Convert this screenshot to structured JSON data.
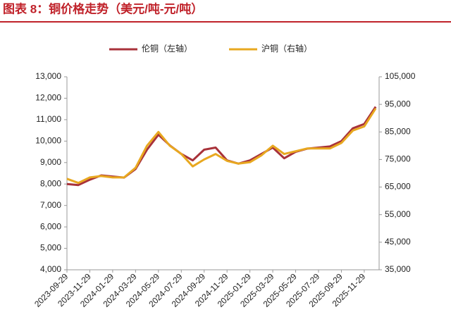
{
  "chart_data": {
    "type": "line",
    "title": "图表 8：铜价格走势（美元/吨-元/吨）",
    "categories": [
      "2023-09-29",
      null,
      "2023-11-29",
      null,
      "2024-01-29",
      null,
      "2024-03-29",
      null,
      "2024-05-29",
      null,
      "2024-07-29",
      null,
      "2024-09-29",
      null,
      "2024-11-29",
      null,
      "2025-01-29",
      null,
      "2025-03-29",
      null,
      "2025-05-29",
      null,
      "2025-07-29",
      null,
      "2025-09-29",
      null,
      "2025-11-29",
      null
    ],
    "series": [
      {
        "name": "伦铜（左轴）",
        "color": "#a8323a",
        "values": [
          8000,
          7950,
          8200,
          8400,
          8350,
          8300,
          8700,
          9600,
          10300,
          9800,
          9400,
          9100,
          9600,
          9700,
          9100,
          8950,
          9100,
          9400,
          9700,
          9200,
          9500,
          9650,
          9700,
          9750,
          10000,
          10600,
          10800,
          11600
        ]
      },
      {
        "name": "沪铜（右轴）",
        "color": "#e8a820",
        "axis": "y2",
        "values": [
          68000,
          66500,
          68500,
          69000,
          68500,
          68500,
          72000,
          80000,
          85000,
          80000,
          77000,
          72500,
          75000,
          77000,
          74500,
          73500,
          74000,
          76500,
          80000,
          77000,
          78000,
          79000,
          79000,
          79000,
          81000,
          85500,
          87000,
          93500
        ]
      }
    ],
    "ylim": [
      4000,
      13000
    ],
    "yticks": [
      {
        "value": 4000,
        "label": "4,000"
      },
      {
        "value": 5000,
        "label": "5,000"
      },
      {
        "value": 6000,
        "label": "6,000"
      },
      {
        "value": 7000,
        "label": "7,000"
      },
      {
        "value": 8000,
        "label": "8,000"
      },
      {
        "value": 9000,
        "label": "9,000"
      },
      {
        "value": 10000,
        "label": "10,000"
      },
      {
        "value": 11000,
        "label": "11,000"
      },
      {
        "value": 12000,
        "label": "12,000"
      },
      {
        "value": 13000,
        "label": "13,000"
      }
    ],
    "y2lim": [
      35000,
      105000
    ],
    "y2ticks": [
      {
        "value": 35000,
        "label": "35,000"
      },
      {
        "value": 45000,
        "label": "45,000"
      },
      {
        "value": 55000,
        "label": "55,000"
      },
      {
        "value": 65000,
        "label": "65,000"
      },
      {
        "value": 75000,
        "label": "75,000"
      },
      {
        "value": 85000,
        "label": "85,000"
      },
      {
        "value": 95000,
        "label": "95,000"
      },
      {
        "value": 105000,
        "label": "105,000"
      }
    ],
    "legend": "top"
  }
}
